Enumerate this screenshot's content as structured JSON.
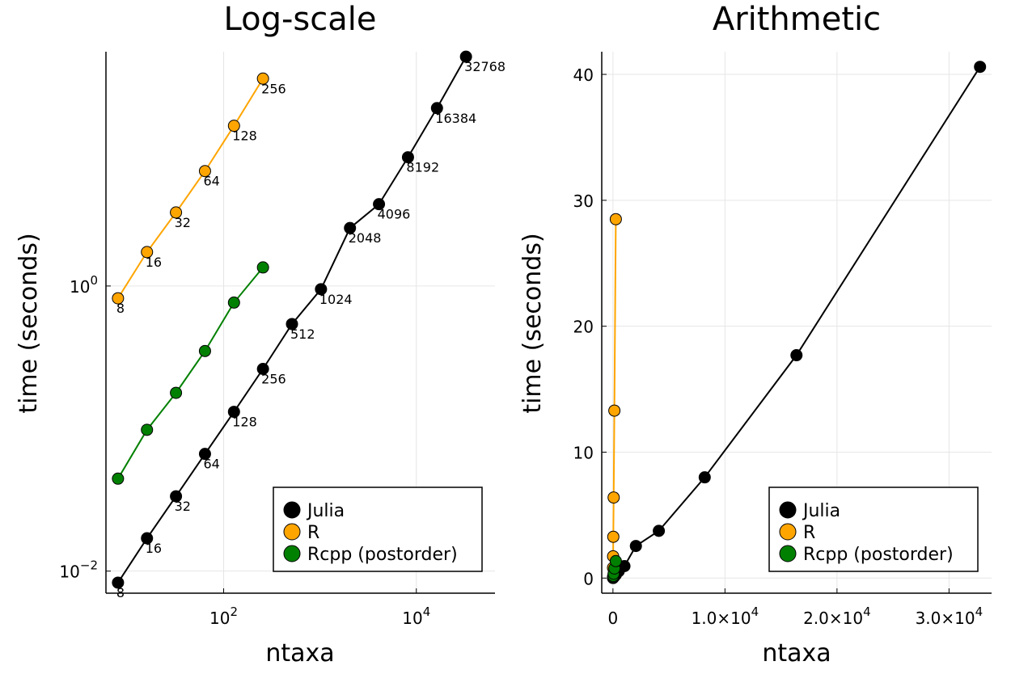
{
  "chart_data": [
    {
      "type": "line",
      "title": "Log-scale",
      "xlabel": "ntaxa",
      "ylabel": "time (seconds)",
      "x_scale": "log",
      "y_scale": "log",
      "xlim": [
        6,
        65536
      ],
      "ylim": [
        0.007,
        44
      ],
      "grid": true,
      "legend_position": "bottom-right",
      "x_ticks": [
        {
          "value": 100,
          "base": "10",
          "exp": "2"
        },
        {
          "value": 10000,
          "base": "10",
          "exp": "4"
        }
      ],
      "y_ticks": [
        {
          "value": 0.01,
          "base": "10",
          "exp": "−2"
        },
        {
          "value": 1,
          "base": "10",
          "exp": "0"
        }
      ],
      "series": [
        {
          "name": "Julia",
          "color": "#000000",
          "x": [
            8,
            16,
            32,
            64,
            128,
            256,
            512,
            1024,
            2048,
            4096,
            8192,
            16384,
            32768
          ],
          "y": [
            0.0083,
            0.017,
            0.0335,
            0.0664,
            0.131,
            0.262,
            0.541,
            0.95,
            2.55,
            3.75,
            8.0,
            17.7,
            40.6
          ],
          "labels": [
            "8",
            "16",
            "32",
            "64",
            "128",
            "256",
            "512",
            "1024",
            "2048",
            "4096",
            "8192",
            "16384",
            "32768"
          ]
        },
        {
          "name": "R",
          "color": "#FFA500",
          "x": [
            8,
            16,
            32,
            64,
            128,
            256
          ],
          "y": [
            0.82,
            1.73,
            3.28,
            6.4,
            13.3,
            28.5
          ],
          "labels": [
            "8",
            "16",
            "32",
            "64",
            "128",
            "256"
          ]
        },
        {
          "name": "Rcpp (postorder)",
          "color": "#008000",
          "x": [
            8,
            16,
            32,
            64,
            128,
            256
          ],
          "y": [
            0.0445,
            0.098,
            0.178,
            0.35,
            0.765,
            1.35
          ],
          "labels": []
        }
      ]
    },
    {
      "type": "line",
      "title": "Arithmetic",
      "xlabel": "ntaxa",
      "ylabel": "time (seconds)",
      "x_scale": "linear",
      "y_scale": "linear",
      "xlim": [
        -1000,
        33800
      ],
      "ylim": [
        -1.2,
        41.8
      ],
      "grid": true,
      "legend_position": "bottom-right",
      "x_ticks": [
        {
          "value": 0,
          "text": "0"
        },
        {
          "value": 10000,
          "text": "1.0×10",
          "exp": "4"
        },
        {
          "value": 20000,
          "text": "2.0×10",
          "exp": "4"
        },
        {
          "value": 30000,
          "text": "3.0×10",
          "exp": "4"
        }
      ],
      "y_ticks": [
        {
          "value": 0,
          "text": "0"
        },
        {
          "value": 10,
          "text": "10"
        },
        {
          "value": 20,
          "text": "20"
        },
        {
          "value": 30,
          "text": "30"
        },
        {
          "value": 40,
          "text": "40"
        }
      ],
      "series": [
        {
          "name": "Julia",
          "color": "#000000",
          "x": [
            8,
            16,
            32,
            64,
            128,
            256,
            512,
            1024,
            2048,
            4096,
            8192,
            16384,
            32768
          ],
          "y": [
            0.0083,
            0.017,
            0.0335,
            0.0664,
            0.131,
            0.262,
            0.541,
            0.95,
            2.55,
            3.75,
            8.0,
            17.7,
            40.6
          ]
        },
        {
          "name": "R",
          "color": "#FFA500",
          "x": [
            8,
            16,
            32,
            64,
            128,
            256
          ],
          "y": [
            0.82,
            1.73,
            3.28,
            6.4,
            13.3,
            28.5
          ]
        },
        {
          "name": "Rcpp (postorder)",
          "color": "#008000",
          "x": [
            8,
            16,
            32,
            64,
            128,
            256
          ],
          "y": [
            0.0445,
            0.098,
            0.178,
            0.35,
            0.765,
            1.35
          ]
        }
      ]
    }
  ]
}
